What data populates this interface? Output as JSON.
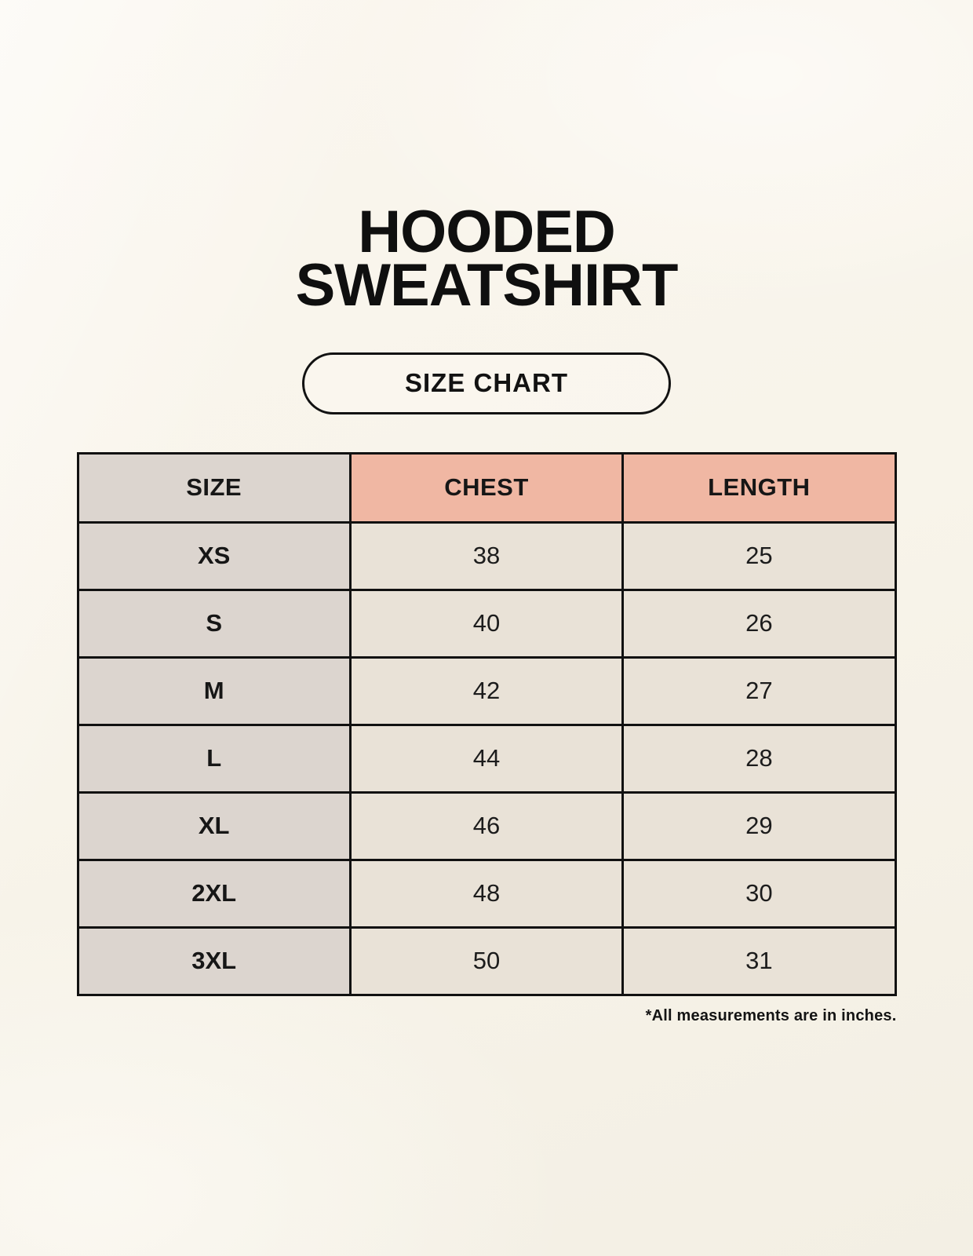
{
  "page": {
    "background_color": "#f8f4ea",
    "text_color": "#141414"
  },
  "title": {
    "lines": [
      "HOODED",
      "SWEATSHIRT"
    ]
  },
  "size_chart_button": {
    "label": "SIZE CHART"
  },
  "table": {
    "columns": [
      "SIZE",
      "CHEST",
      "LENGTH"
    ],
    "rows": [
      {
        "size": "XS",
        "chest": "38",
        "length": "25"
      },
      {
        "size": "S",
        "chest": "40",
        "length": "26"
      },
      {
        "size": "M",
        "chest": "42",
        "length": "27"
      },
      {
        "size": "L",
        "chest": "44",
        "length": "28"
      },
      {
        "size": "XL",
        "chest": "46",
        "length": "29"
      },
      {
        "size": "2XL",
        "chest": "48",
        "length": "30"
      },
      {
        "size": "3XL",
        "chest": "50",
        "length": "31"
      }
    ],
    "colors": {
      "header_accent": "#f0b7a3",
      "size_column": "#dcd5cf",
      "value_cell": "#e9e2d7",
      "border": "#111111"
    }
  },
  "footnote": "*All measurements are in inches.",
  "chart_data": {
    "type": "table",
    "title": "HOODED SWEATSHIRT",
    "subtitle": "SIZE CHART",
    "columns": [
      "SIZE",
      "CHEST",
      "LENGTH"
    ],
    "rows": [
      [
        "XS",
        38,
        25
      ],
      [
        "S",
        40,
        26
      ],
      [
        "M",
        42,
        27
      ],
      [
        "L",
        44,
        28
      ],
      [
        "XL",
        46,
        29
      ],
      [
        "2XL",
        48,
        30
      ],
      [
        "3XL",
        50,
        31
      ]
    ],
    "units": "inches",
    "note": "*All measurements are in inches."
  }
}
